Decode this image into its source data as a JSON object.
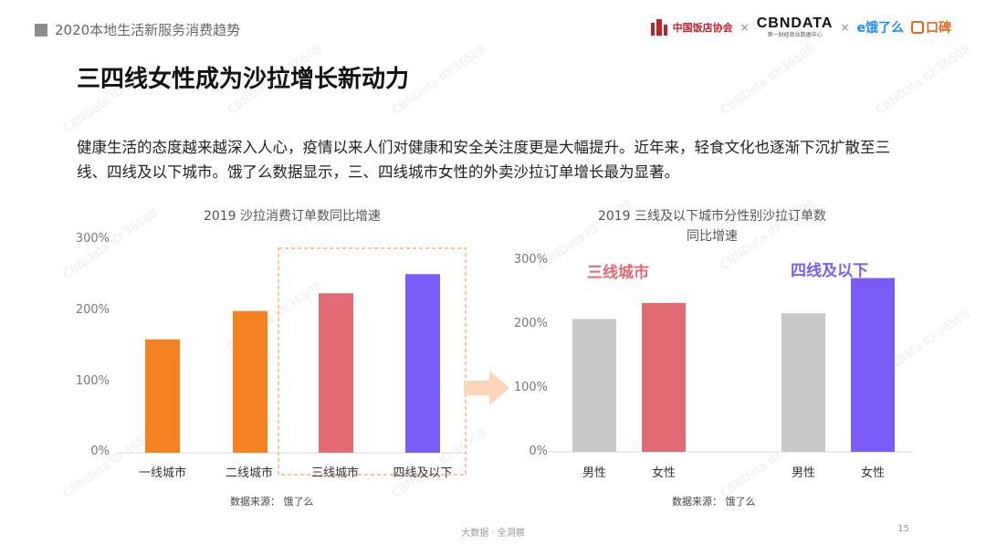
{
  "header": {
    "report_tag": "2020本地生活新服务消费趋势"
  },
  "logos": {
    "hotel_assoc": "中国饭店协会",
    "times_1": "×",
    "cbndata": "CBNDATA",
    "cbndata_sub": "第一财经商业数据中心",
    "times_2": "×",
    "eleme": "e饿了么",
    "koubei": "口碑"
  },
  "page_title": "三四线女性成为沙拉增长新动力",
  "description": "健康生活的态度越来越深入人心，疫情以来人们对健康和安全关注度更是大幅提升。近年来，轻食文化也逐渐下沉扩散至三线、四线及以下城市。饿了么数据显示，三、四线城市女性的外卖沙拉订单增长最为显著。",
  "watermark_text": "CBNData ID:36508",
  "chart_data": [
    {
      "type": "bar",
      "title": "2019 沙拉消费订单数同比增速",
      "categories": [
        "一线城市",
        "二线城市",
        "三线城市",
        "四线及以下"
      ],
      "values": [
        160,
        200,
        225,
        252
      ],
      "colors": [
        "#f58220",
        "#f58220",
        "#e26b73",
        "#7b5cf6"
      ],
      "yticks": [
        "0%",
        "100%",
        "200%",
        "300%"
      ],
      "ylim": [
        0,
        300
      ],
      "highlight_categories": [
        "三线城市",
        "四线及以下"
      ],
      "source": "数据来源：  饿了么"
    },
    {
      "type": "bar",
      "title": "2019 三线及以下城市分性别沙拉订单数",
      "title_line2": "同比增速",
      "groups": [
        "三线城市",
        "四线及以下"
      ],
      "categories": [
        "男性",
        "女性",
        "男性",
        "女性"
      ],
      "values": [
        208,
        233,
        217,
        272
      ],
      "colors": [
        "#c8c8c8",
        "#e26b73",
        "#c8c8c8",
        "#7b5cf6"
      ],
      "yticks": [
        "0%",
        "100%",
        "200%",
        "300%"
      ],
      "ylim": [
        0,
        300
      ],
      "source": "数据来源：  饿了么"
    }
  ],
  "footer": {
    "center": "大数据 · 全洞察",
    "page_number": "15"
  }
}
